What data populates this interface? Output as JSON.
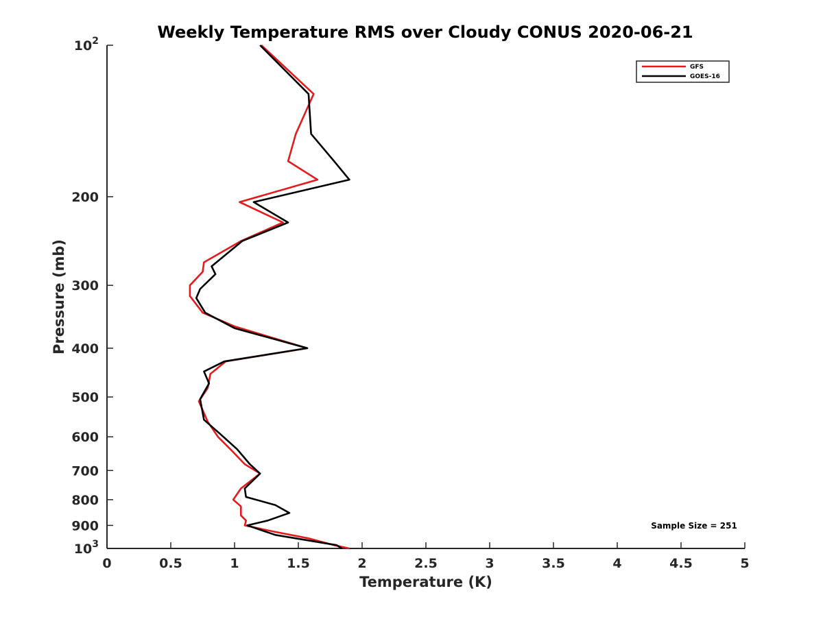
{
  "chart_data": {
    "type": "line",
    "title": "Weekly Temperature RMS over Cloudy CONUS 2020-06-21",
    "xlabel": "Temperature (K)",
    "ylabel": "Pressure (mb)",
    "xlim": [
      0,
      5
    ],
    "ylim": [
      100,
      1000
    ],
    "y_scale": "log",
    "y_reversed": true,
    "grid": false,
    "legend_position": "top-right",
    "x_ticks": [
      "0",
      "0.5",
      "1",
      "1.5",
      "2",
      "2.5",
      "3",
      "3.5",
      "4",
      "4.5",
      "5"
    ],
    "y_ticks": [
      {
        "value": 100,
        "base": "10",
        "exp": "2"
      },
      {
        "value": 200,
        "label": "200"
      },
      {
        "value": 300,
        "label": "300"
      },
      {
        "value": 400,
        "label": "400"
      },
      {
        "value": 500,
        "label": "500"
      },
      {
        "value": 600,
        "label": "600"
      },
      {
        "value": 700,
        "label": "700"
      },
      {
        "value": 800,
        "label": "800"
      },
      {
        "value": 900,
        "label": "900"
      },
      {
        "value": 1000,
        "base": "10",
        "exp": "3"
      }
    ],
    "annotation": "Sample Size = 251",
    "series": [
      {
        "name": "GFS",
        "color": "#e41a1c",
        "points": [
          [
            1.21,
            100
          ],
          [
            1.62,
            125
          ],
          [
            1.48,
            150
          ],
          [
            1.42,
            170
          ],
          [
            1.65,
            185
          ],
          [
            1.04,
            205
          ],
          [
            1.38,
            225
          ],
          [
            1.05,
            245
          ],
          [
            0.76,
            270
          ],
          [
            0.75,
            282
          ],
          [
            0.65,
            300
          ],
          [
            0.65,
            315
          ],
          [
            0.75,
            340
          ],
          [
            1.0,
            362
          ],
          [
            1.57,
            400
          ],
          [
            0.93,
            425
          ],
          [
            0.81,
            450
          ],
          [
            0.79,
            480
          ],
          [
            0.72,
            510
          ],
          [
            0.79,
            560
          ],
          [
            0.87,
            600
          ],
          [
            0.98,
            640
          ],
          [
            1.08,
            680
          ],
          [
            1.2,
            710
          ],
          [
            1.05,
            760
          ],
          [
            0.99,
            800
          ],
          [
            1.05,
            825
          ],
          [
            1.05,
            860
          ],
          [
            1.09,
            880
          ],
          [
            1.08,
            900
          ],
          [
            1.3,
            925
          ],
          [
            1.58,
            955
          ],
          [
            1.78,
            985
          ],
          [
            1.9,
            1000
          ]
        ]
      },
      {
        "name": "GOES-16",
        "color": "#000000",
        "points": [
          [
            1.2,
            100
          ],
          [
            1.58,
            125
          ],
          [
            1.6,
            150
          ],
          [
            1.78,
            170
          ],
          [
            1.9,
            185
          ],
          [
            1.15,
            205
          ],
          [
            1.42,
            225
          ],
          [
            1.06,
            245
          ],
          [
            0.82,
            275
          ],
          [
            0.85,
            285
          ],
          [
            0.73,
            305
          ],
          [
            0.7,
            318
          ],
          [
            0.77,
            340
          ],
          [
            1.0,
            365
          ],
          [
            1.57,
            400
          ],
          [
            0.92,
            425
          ],
          [
            0.76,
            445
          ],
          [
            0.8,
            470
          ],
          [
            0.73,
            505
          ],
          [
            0.76,
            555
          ],
          [
            0.88,
            590
          ],
          [
            1.02,
            635
          ],
          [
            1.12,
            680
          ],
          [
            1.2,
            710
          ],
          [
            1.08,
            760
          ],
          [
            1.09,
            790
          ],
          [
            1.32,
            820
          ],
          [
            1.43,
            850
          ],
          [
            1.26,
            880
          ],
          [
            1.1,
            900
          ],
          [
            1.32,
            940
          ],
          [
            1.8,
            985
          ],
          [
            1.84,
            1000
          ]
        ]
      }
    ]
  }
}
